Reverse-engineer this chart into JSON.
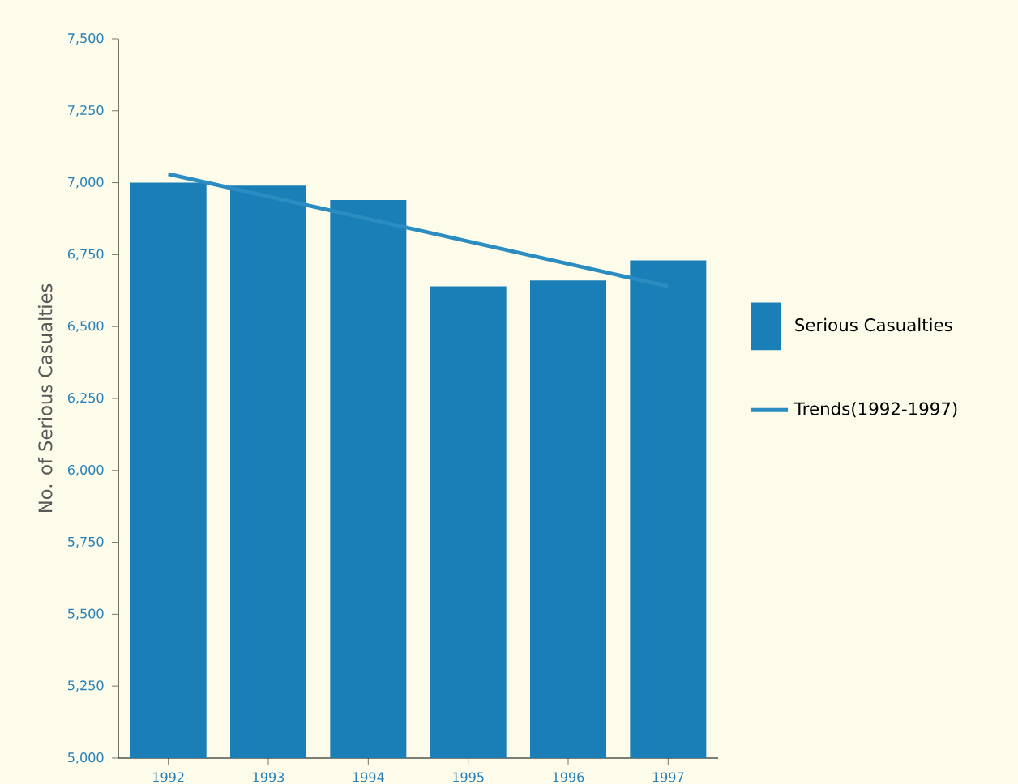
{
  "chart_data": {
    "type": "bar",
    "ylabel": "No. of Serious Casualties",
    "categories": [
      "1992",
      "1993",
      "1994",
      "1995",
      "1996",
      "1997"
    ],
    "series": [
      {
        "name": "Serious Casualties",
        "color": "#1a7fb6",
        "values": [
          7000,
          6990,
          6940,
          6640,
          6660,
          6730
        ]
      },
      {
        "name": "Trends(1992-1997)",
        "type": "line",
        "color": "#2a8cc0",
        "values": [
          7030,
          6952,
          6874,
          6796,
          6718,
          6640
        ]
      }
    ],
    "ylim": [
      5000,
      7500
    ],
    "yticks": [
      {
        "value": 5000,
        "label": "5,000"
      },
      {
        "value": 5250,
        "label": "5,250"
      },
      {
        "value": 5500,
        "label": "5,500"
      },
      {
        "value": 5750,
        "label": "5,750"
      },
      {
        "value": 6000,
        "label": "6,000"
      },
      {
        "value": 6250,
        "label": "6,250"
      },
      {
        "value": 6500,
        "label": "6,500"
      },
      {
        "value": 6750,
        "label": "6,750"
      },
      {
        "value": 7000,
        "label": "7,000"
      },
      {
        "value": 7250,
        "label": "7,250"
      },
      {
        "value": 7500,
        "label": "7,500"
      }
    ],
    "grid": false,
    "legend": "right",
    "marker": "none"
  }
}
